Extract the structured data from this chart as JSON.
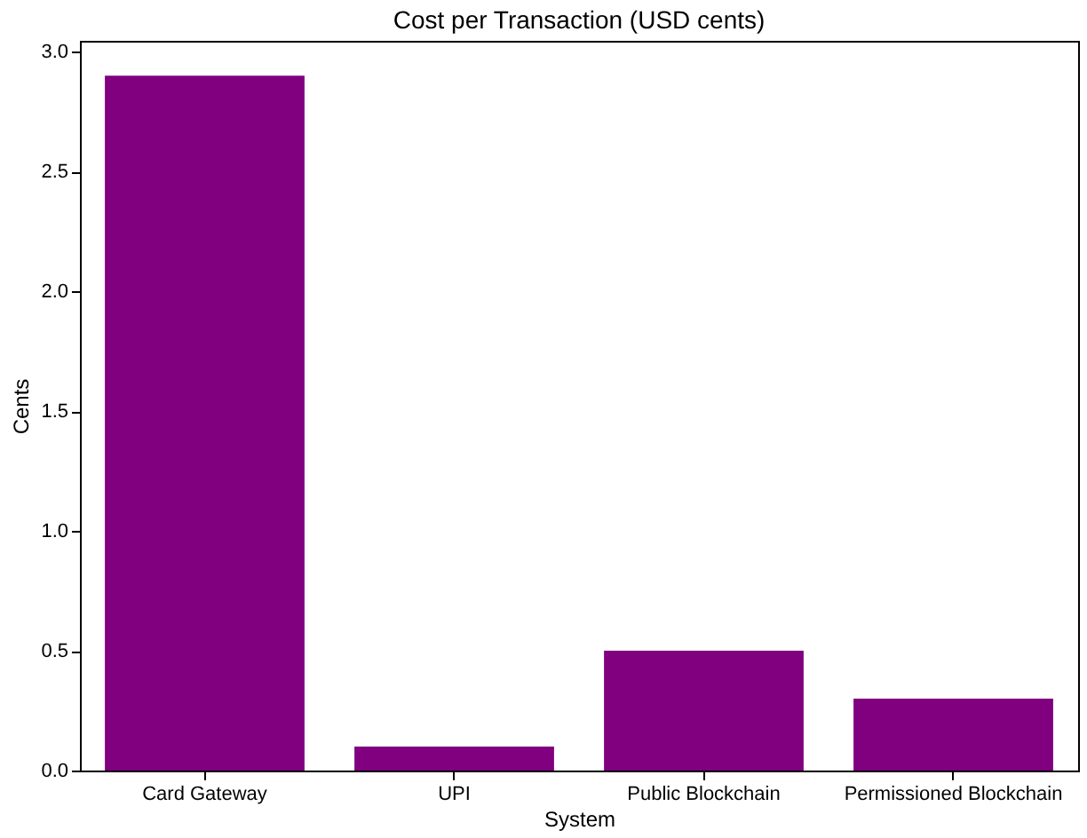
{
  "chart_data": {
    "type": "bar",
    "title": "Cost per Transaction (USD cents)",
    "xlabel": "System",
    "ylabel": "Cents",
    "categories": [
      "Card Gateway",
      "UPI",
      "Public Blockchain",
      "Permissioned Blockchain"
    ],
    "values": [
      2.9,
      0.1,
      0.5,
      0.3
    ],
    "color": "#800080",
    "ylim": [
      0,
      3.045
    ],
    "yticks": [
      {
        "value": 0,
        "label": "0.0"
      },
      {
        "value": 0.5,
        "label": "0.5"
      },
      {
        "value": 1,
        "label": "1.0"
      },
      {
        "value": 1.5,
        "label": "1.5"
      },
      {
        "value": 2,
        "label": "2.0"
      },
      {
        "value": 2.5,
        "label": "2.5"
      },
      {
        "value": 3,
        "label": "3.0"
      }
    ],
    "grid": false
  }
}
